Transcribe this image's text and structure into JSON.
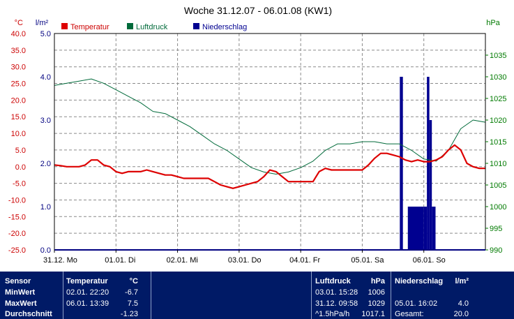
{
  "chart_data": {
    "type": "line",
    "title": "Woche 31.12.07 - 06.01.08 (KW1)",
    "legend_position": "top-left",
    "grid": true,
    "x_categories": [
      "31.12. Mo",
      "01.01. Di",
      "02.01. Mi",
      "03.01. Do",
      "04.01. Fr",
      "05.01. Sa",
      "06.01. So"
    ],
    "axes": {
      "temperature": {
        "unit": "°C",
        "range": [
          -25,
          40
        ],
        "ticks": [
          "40.0",
          "35.0",
          "30.0",
          "25.0",
          "20.0",
          "15.0",
          "10.0",
          "5.0",
          "0.0",
          "-5.0",
          "-10.0",
          "-15.0",
          "-20.0",
          "-25.0"
        ],
        "color": "#cc0000"
      },
      "precipitation": {
        "unit": "l/m²",
        "range": [
          0,
          5
        ],
        "ticks": [
          "5.0",
          "4.0",
          "3.0",
          "2.0",
          "1.0",
          "0.0"
        ],
        "color": "#000080"
      },
      "pressure": {
        "unit": "hPa",
        "range": [
          990,
          1040
        ],
        "ticks": [
          "1035",
          "1030",
          "1025",
          "1020",
          "1015",
          "1010",
          "1005",
          "1000",
          "995",
          "990"
        ],
        "color": "#007a00"
      }
    },
    "series": [
      {
        "name": "Temperatur",
        "color": "#dd0000",
        "axis": "temperature",
        "x": [
          0,
          0.1,
          0.2,
          0.3,
          0.4,
          0.5,
          0.6,
          0.7,
          0.8,
          0.9,
          1.0,
          1.1,
          1.2,
          1.3,
          1.4,
          1.5,
          1.6,
          1.7,
          1.8,
          1.9,
          2.0,
          2.1,
          2.2,
          2.3,
          2.4,
          2.5,
          2.6,
          2.7,
          2.8,
          2.9,
          3.0,
          3.1,
          3.2,
          3.3,
          3.4,
          3.5,
          3.6,
          3.7,
          3.8,
          3.9,
          4.0,
          4.1,
          4.2,
          4.3,
          4.4,
          4.5,
          4.6,
          4.7,
          4.8,
          4.9,
          5.0,
          5.1,
          5.2,
          5.3,
          5.4,
          5.5,
          5.6,
          5.7,
          5.8,
          5.9,
          6.0,
          6.1,
          6.2,
          6.3,
          6.4,
          6.5,
          6.6,
          6.7,
          6.8,
          6.9,
          7.0
        ],
        "y": [
          0.5,
          0.3,
          0,
          0,
          0,
          0.5,
          2,
          2,
          0.5,
          0,
          -1.5,
          -2,
          -1.5,
          -1.5,
          -1.5,
          -1,
          -1.5,
          -2,
          -2.5,
          -2.5,
          -3,
          -3.5,
          -3.5,
          -3.5,
          -3.5,
          -3.5,
          -4.5,
          -5.5,
          -6,
          -6.5,
          -6,
          -5.5,
          -5,
          -4.5,
          -3,
          -1,
          -1.5,
          -3,
          -4.5,
          -4.5,
          -4.5,
          -4.5,
          -4.5,
          -1.5,
          -0.5,
          -1,
          -1,
          -1,
          -1,
          -1,
          -1,
          0.5,
          2.5,
          4,
          4,
          3.5,
          3,
          2,
          1.5,
          2,
          1.5,
          1.5,
          2,
          3,
          5,
          6.5,
          5,
          1,
          0,
          -0.5,
          -0.5
        ]
      },
      {
        "name": "Luftdruck",
        "color": "#006a3a",
        "axis": "pressure",
        "x": [
          0,
          0.2,
          0.4,
          0.6,
          0.8,
          1.0,
          1.2,
          1.4,
          1.6,
          1.8,
          2.0,
          2.2,
          2.4,
          2.6,
          2.8,
          3.0,
          3.2,
          3.4,
          3.6,
          3.8,
          4.0,
          4.2,
          4.4,
          4.6,
          4.8,
          5.0,
          5.2,
          5.4,
          5.6,
          5.8,
          6.0,
          6.2,
          6.4,
          6.6,
          6.8,
          7.0
        ],
        "y": [
          1028,
          1028.5,
          1029,
          1029.5,
          1028.5,
          1027,
          1025.5,
          1024,
          1022,
          1021.5,
          1020,
          1018.5,
          1016.5,
          1014.5,
          1013,
          1011,
          1009,
          1008,
          1007.5,
          1008,
          1009,
          1010.5,
          1013,
          1014.5,
          1014.5,
          1015,
          1015,
          1014.5,
          1014.5,
          1013,
          1011,
          1010.5,
          1013,
          1018,
          1020,
          1019.5
        ]
      },
      {
        "name": "Niederschlag",
        "color": "#000090",
        "axis": "precipitation",
        "type": "bar",
        "bars": [
          {
            "x0": 5.61,
            "x1": 5.66,
            "y": 4.0
          },
          {
            "x0": 5.74,
            "x1": 6.0,
            "y": 1.0
          },
          {
            "x0": 6.0,
            "x1": 6.05,
            "y": 1.0
          },
          {
            "x0": 6.05,
            "x1": 6.09,
            "y": 4.0
          },
          {
            "x0": 6.09,
            "x1": 6.13,
            "y": 3.0
          },
          {
            "x0": 6.13,
            "x1": 6.19,
            "y": 1.0
          }
        ]
      }
    ]
  },
  "stats": {
    "headers": {
      "sensor": "Sensor",
      "temp": "Temperatur",
      "temp_unit": "°C",
      "press": "Luftdruck",
      "press_unit": "hPa",
      "rain": "Niederschlag",
      "rain_unit": "l/m²"
    },
    "rows": [
      {
        "label": "MinWert",
        "temp_time": "02.01.  22:20",
        "temp_val": "-6.7",
        "press_time": "03.01.  15:28",
        "press_val": "1006",
        "rain_time": "",
        "rain_val": ""
      },
      {
        "label": "MaxWert",
        "temp_time": "06.01.  13:39",
        "temp_val": "7.5",
        "press_time": "31.12.  09:58",
        "press_val": "1029",
        "rain_time": "05.01.  16:02",
        "rain_val": "4.0"
      },
      {
        "label": "Durchschnitt",
        "temp_time": "",
        "temp_val": "-1.23",
        "press_time": "^1.5hPa/h",
        "press_val": "1017.1",
        "rain_time": "Gesamt:",
        "rain_val": "20.0"
      }
    ]
  }
}
